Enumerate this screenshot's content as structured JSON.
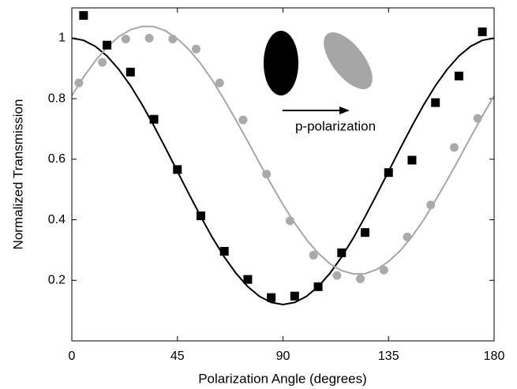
{
  "chart_data": {
    "type": "scatter",
    "xlabel": "Polarization Angle (degrees)",
    "ylabel": "Normalized Transmission",
    "annotation": "p-polarization",
    "xlim": [
      0,
      180
    ],
    "xticks": [
      0,
      45,
      90,
      135,
      180
    ],
    "ylim": [
      0,
      1.1
    ],
    "yticks": [
      0.2,
      0.4,
      0.6,
      0.8,
      1
    ],
    "series": [
      {
        "color": "#000000",
        "marker": "square",
        "x": [
          5,
          15,
          25,
          35,
          45,
          55,
          65,
          75,
          85,
          95,
          105,
          115,
          125,
          135,
          145,
          155,
          165,
          175
        ],
        "values": [
          1.075,
          0.977,
          0.888,
          0.732,
          0.566,
          0.413,
          0.296,
          0.203,
          0.143,
          0.148,
          0.179,
          0.291,
          0.358,
          0.556,
          0.597,
          0.787,
          0.875,
          1.021
        ]
      },
      {
        "color": "#aaaaaa",
        "marker": "circle",
        "x": [
          3,
          13,
          23,
          33,
          43,
          53,
          63,
          73,
          83,
          93,
          103,
          113,
          123,
          133,
          143,
          153,
          163,
          173
        ],
        "values": [
          0.852,
          0.92,
          0.997,
          1.0,
          0.997,
          0.964,
          0.852,
          0.73,
          0.551,
          0.397,
          0.283,
          0.216,
          0.205,
          0.234,
          0.343,
          0.449,
          0.639,
          0.735
        ]
      },
      {
        "color": "#000000",
        "marker": "line",
        "x": [
          0,
          5,
          10,
          15,
          20,
          25,
          30,
          35,
          40,
          45,
          50,
          55,
          60,
          65,
          70,
          75,
          80,
          85,
          90,
          95,
          100,
          105,
          110,
          115,
          120,
          125,
          130,
          135,
          140,
          145,
          150,
          155,
          160,
          165,
          170,
          175,
          180
        ],
        "values": [
          1,
          0.993,
          0.973,
          0.941,
          0.897,
          0.843,
          0.78,
          0.71,
          0.636,
          0.56,
          0.484,
          0.41,
          0.34,
          0.277,
          0.223,
          0.179,
          0.147,
          0.127,
          0.12,
          0.127,
          0.147,
          0.179,
          0.223,
          0.277,
          0.34,
          0.41,
          0.484,
          0.56,
          0.636,
          0.71,
          0.78,
          0.843,
          0.897,
          0.941,
          0.973,
          0.993,
          1
        ]
      },
      {
        "color": "#a6a6a6",
        "marker": "line",
        "x": [
          0,
          5,
          10,
          15,
          20,
          25,
          30,
          35,
          40,
          45,
          50,
          55,
          60,
          65,
          70,
          75,
          80,
          85,
          90,
          95,
          100,
          105,
          110,
          115,
          120,
          125,
          130,
          135,
          140,
          145,
          150,
          155,
          160,
          165,
          170,
          175,
          180
        ],
        "values": [
          0.81,
          0.871,
          0.925,
          0.97,
          1.005,
          1.028,
          1.039,
          1.038,
          1.024,
          0.998,
          0.962,
          0.915,
          0.86,
          0.796,
          0.729,
          0.659,
          0.587,
          0.517,
          0.45,
          0.389,
          0.335,
          0.29,
          0.255,
          0.232,
          0.221,
          0.222,
          0.236,
          0.262,
          0.298,
          0.345,
          0.4,
          0.464,
          0.531,
          0.601,
          0.673,
          0.743,
          0.81
        ]
      }
    ]
  }
}
